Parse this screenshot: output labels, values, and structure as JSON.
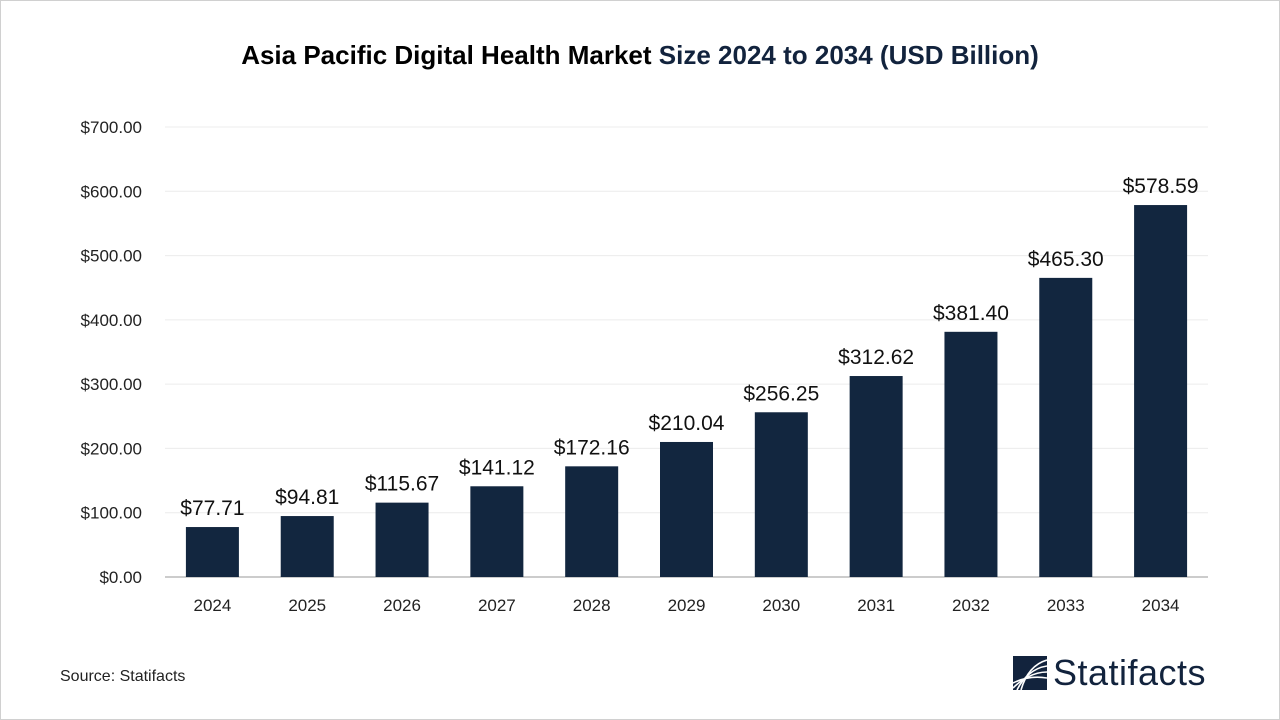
{
  "title_part1": "Asia Pacific Digital Health Market",
  "title_part2": "Size 2024 to 2034 (USD Billion)",
  "source": "Source: Statifacts",
  "logo": "Statifacts",
  "colors": {
    "bar": "#12263f",
    "title_accent": "#12233d"
  },
  "chart_data": {
    "type": "bar",
    "title": "Asia Pacific Digital Health Market Size 2024 to 2034 (USD Billion)",
    "categories": [
      "2024",
      "2025",
      "2026",
      "2027",
      "2028",
      "2029",
      "2030",
      "2031",
      "2032",
      "2033",
      "2034"
    ],
    "values": [
      77.71,
      94.81,
      115.67,
      141.12,
      172.16,
      210.04,
      256.25,
      312.62,
      381.4,
      465.3,
      578.59
    ],
    "data_labels": [
      "$77.71",
      "$94.81",
      "$115.67",
      "$141.12",
      "$172.16",
      "$210.04",
      "$256.25",
      "$312.62",
      "$381.40",
      "$465.30",
      "$578.59"
    ],
    "yticks": [
      0,
      100,
      200,
      300,
      400,
      500,
      600,
      700
    ],
    "ytick_labels": [
      "$0.00",
      "$100.00",
      "$200.00",
      "$300.00",
      "$400.00",
      "$500.00",
      "$600.00",
      "$700.00"
    ],
    "ylim": [
      0,
      700
    ],
    "xlabel": "",
    "ylabel": "",
    "grid": true,
    "legend": "none"
  }
}
